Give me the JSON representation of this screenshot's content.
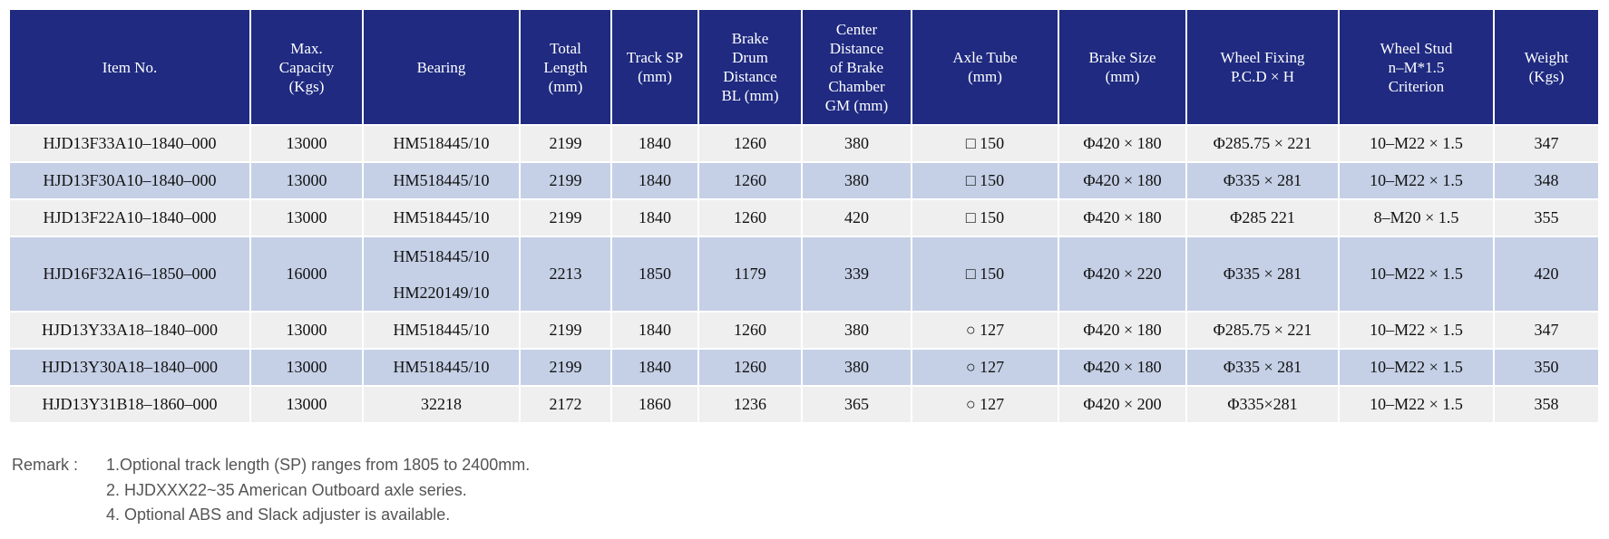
{
  "table": {
    "header": [
      [
        "Item No."
      ],
      [
        "Max.",
        "Capacity",
        "(Kgs)"
      ],
      [
        "Bearing"
      ],
      [
        "Total",
        "Length",
        "(mm)"
      ],
      [
        "Track SP",
        "(mm)"
      ],
      [
        "Brake",
        "Drum",
        "Distance",
        "BL (mm)"
      ],
      [
        "Center",
        "Distance",
        "of Brake",
        "Chamber",
        "GM (mm)"
      ],
      [
        "Axle Tube",
        "(mm)"
      ],
      [
        "Brake Size",
        "(mm)"
      ],
      [
        "Wheel Fixing",
        "P.C.D × H"
      ],
      [
        "Wheel Stud",
        "n–M*1.5",
        "Criterion"
      ],
      [
        "Weight",
        "(Kgs)"
      ]
    ],
    "rows": [
      [
        "HJD13F33A10–1840–000",
        "13000",
        "HM518445/10",
        "2199",
        "1840",
        "1260",
        "380",
        "□ 150",
        "Φ420 × 180",
        "Φ285.75 × 221",
        "10–M22 × 1.5",
        "347"
      ],
      [
        "HJD13F30A10–1840–000",
        "13000",
        "HM518445/10",
        "2199",
        "1840",
        "1260",
        "380",
        "□ 150",
        "Φ420 × 180",
        "Φ335 × 281",
        "10–M22 × 1.5",
        "348"
      ],
      [
        "HJD13F22A10–1840–000",
        "13000",
        "HM518445/10",
        "2199",
        "1840",
        "1260",
        "420",
        "□ 150",
        "Φ420 × 180",
        "Φ285    221",
        "8–M20 × 1.5",
        "355"
      ],
      [
        "HJD16F32A16–1850–000",
        "16000",
        [
          "HM518445/10",
          "HM220149/10"
        ],
        "2213",
        "1850",
        "1179",
        "339",
        "□ 150",
        "Φ420 × 220",
        "Φ335 × 281",
        "10–M22 × 1.5",
        "420"
      ],
      [
        "HJD13Y33A18–1840–000",
        "13000",
        "HM518445/10",
        "2199",
        "1840",
        "1260",
        "380",
        "○ 127",
        "Φ420 × 180",
        "Φ285.75 × 221",
        "10–M22 × 1.5",
        "347"
      ],
      [
        "HJD13Y30A18–1840–000",
        "13000",
        "HM518445/10",
        "2199",
        "1840",
        "1260",
        "380",
        "○ 127",
        "Φ420 × 180",
        "Φ335 × 281",
        "10–M22 × 1.5",
        "350"
      ],
      [
        "HJD13Y31B18–1860–000",
        "13000",
        "32218",
        "2172",
        "1860",
        "1236",
        "365",
        "○ 127",
        "Φ420 × 200",
        "Φ335×281",
        "10–M22 × 1.5",
        "358"
      ]
    ]
  },
  "remarks": {
    "label": "Remark :",
    "items": [
      "1.Optional track length (SP) ranges from 1805 to 2400mm.",
      "2. HJDXXX22~35 American Outboard axle series.",
      "4. Optional ABS and Slack adjuster is available."
    ]
  }
}
